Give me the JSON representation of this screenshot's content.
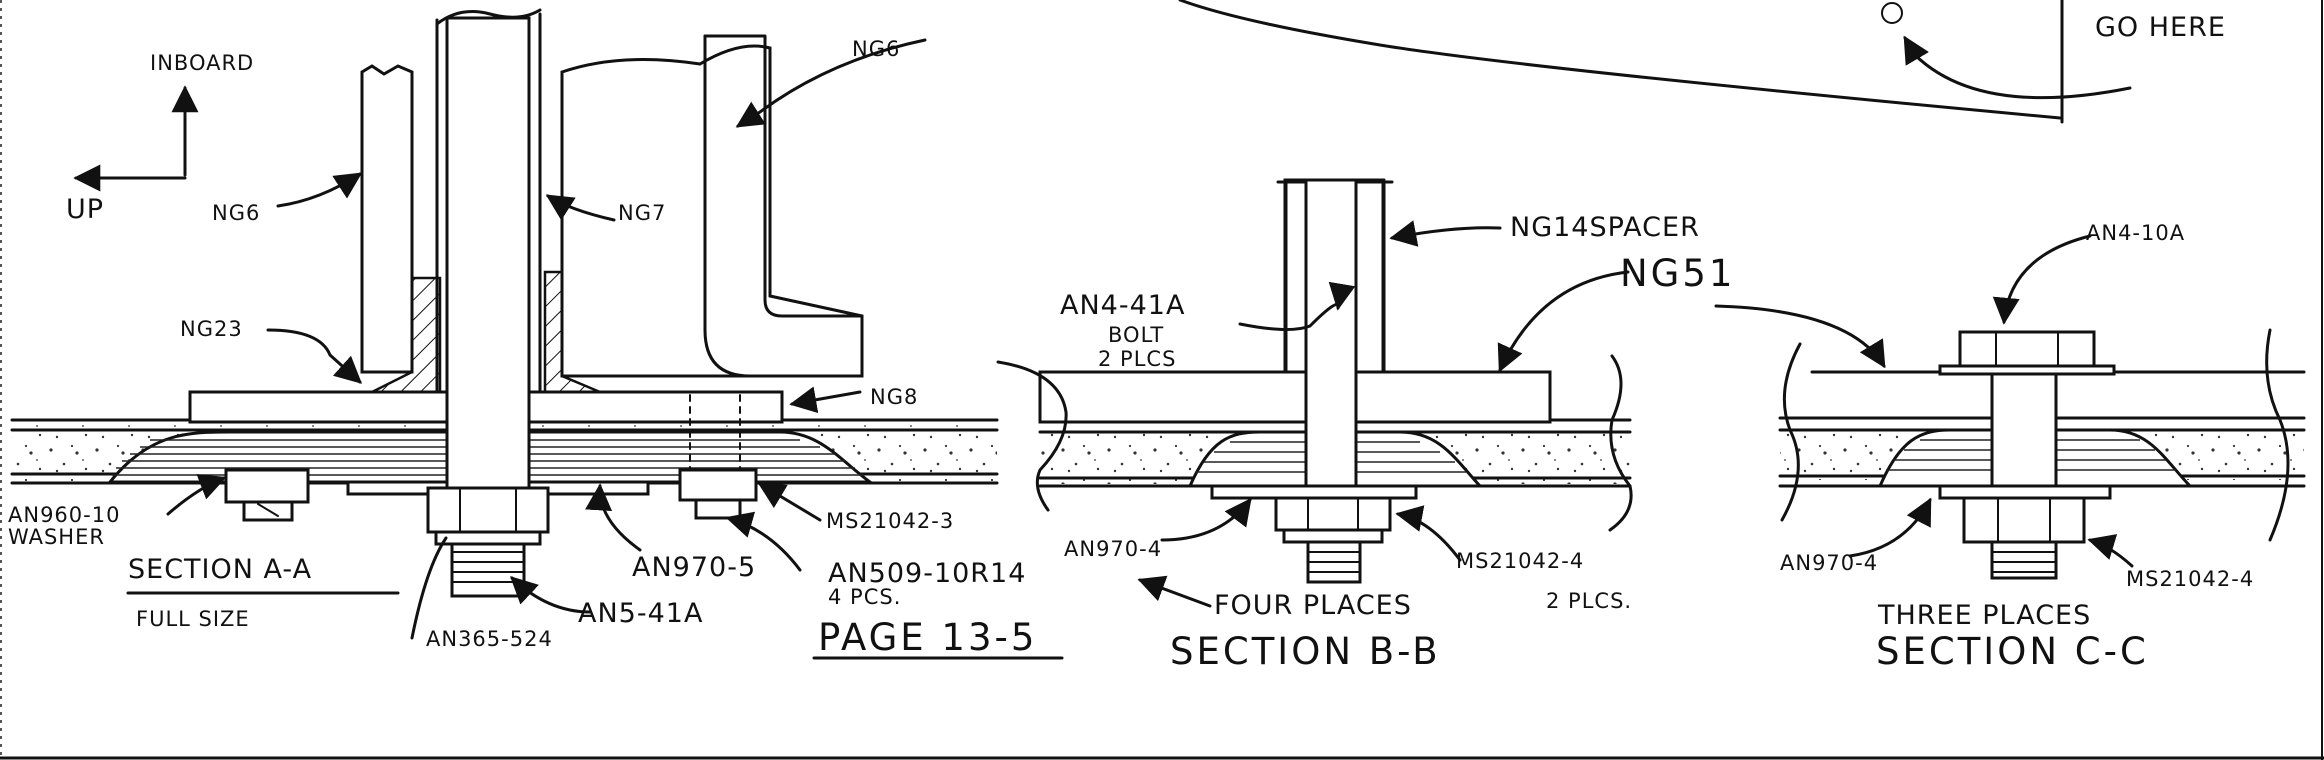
{
  "section_a": {
    "orientation": {
      "inboard": "INBOARD",
      "up": "UP"
    },
    "title": "SECTION A-A",
    "subtitle": "FULL SIZE",
    "callouts": {
      "ng6_top": "NG6",
      "ng6_left": "NG6",
      "ng7": "NG7",
      "ng23": "NG23",
      "ng8": "NG8",
      "an960": "AN960-10",
      "washer": "WASHER",
      "ms21042_3": "MS21042-3",
      "an970_5": "AN970-5",
      "an509": "AN509-10R14",
      "an509_qty": "4 PCS.",
      "an5": "AN5-41A",
      "an365": "AN365-524"
    }
  },
  "page_ref": "PAGE 13-5",
  "section_b": {
    "title": "SECTION B-B",
    "callouts": {
      "spacer": "NG14SPACER",
      "ng51": "NG51",
      "bolt": "AN4-41A",
      "bolt_word": "BOLT",
      "bolt_qty": "2 PLCS",
      "an970_4": "AN970-4",
      "four_places": "FOUR PLACES",
      "ms21042_4": "MS21042-4",
      "ms_qty": "2 PLCS."
    }
  },
  "section_c": {
    "title": "SECTION C-C",
    "callouts": {
      "an4_10a": "AN4-10A",
      "an970_4": "AN970-4",
      "ms21042_4": "MS21042-4",
      "three_places": "THREE PLACES"
    }
  },
  "top_note": "GO HERE"
}
